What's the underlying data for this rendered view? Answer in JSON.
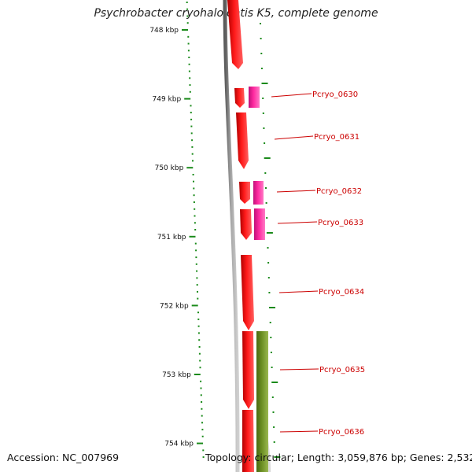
{
  "title": "Psychrobacter cryohalolentis K5, complete genome",
  "colors": {
    "forward_gene": "#ff0000",
    "reverse_gene": "#ff2aa0",
    "olive_feature": "#6b8e23",
    "label": "#cc0000",
    "tick": "#1a8a1a",
    "backbone": "#888888"
  },
  "kbp_marks": [
    {
      "label": "748 kbp",
      "kbp": 748
    },
    {
      "label": "749 kbp",
      "kbp": 749
    },
    {
      "label": "750 kbp",
      "kbp": 750
    },
    {
      "label": "751 kbp",
      "kbp": 751
    },
    {
      "label": "752 kbp",
      "kbp": 752
    },
    {
      "label": "753 kbp",
      "kbp": 753
    },
    {
      "label": "754 kbp",
      "kbp": 754
    }
  ],
  "genes": [
    {
      "name": "Pcryo_0630"
    },
    {
      "name": "Pcryo_0631"
    },
    {
      "name": "Pcryo_0632"
    },
    {
      "name": "Pcryo_0633"
    },
    {
      "name": "Pcryo_0634"
    },
    {
      "name": "Pcryo_0635"
    },
    {
      "name": "Pcryo_0636"
    }
  ],
  "footer": {
    "accession": "Accession: NC_007969",
    "topology": "Topology: circular; Length: 3,059,876 bp; Genes: 2,532"
  }
}
